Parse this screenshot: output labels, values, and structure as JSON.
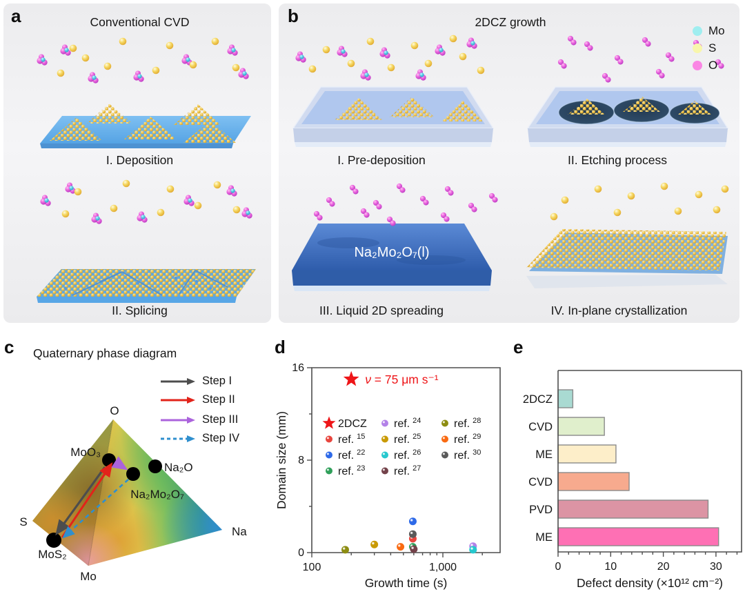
{
  "panel_a": {
    "letter": "a",
    "title": "Conventional CVD",
    "caption_1": "I. Deposition",
    "caption_2": "II. Splicing"
  },
  "panel_b": {
    "letter": "b",
    "title": "2DCZ growth",
    "caption_1": "I. Pre-deposition",
    "caption_2": "II. Etching process",
    "caption_3": "III. Liquid 2D spreading",
    "caption_4": "IV. In-plane crystallization",
    "liquid_label": "Na₂Mo₂O₇(l)",
    "atom_legend": [
      {
        "name": "Mo",
        "color": "#9feef0"
      },
      {
        "name": "S",
        "color": "#f8f6ac"
      },
      {
        "name": "O",
        "color": "#fa86e4"
      }
    ]
  },
  "panel_c": {
    "letter": "c",
    "title": "Quaternary phase diagram",
    "step_legend": [
      {
        "label": "Step I",
        "color": "#4d4d4d",
        "dashed": false
      },
      {
        "label": "Step II",
        "color": "#e2231a",
        "dashed": false
      },
      {
        "label": "Step III",
        "color": "#ab63dc",
        "dashed": false
      },
      {
        "label": "Step IV",
        "color": "#2f8fce",
        "dashed": true
      }
    ],
    "vertex_labels": {
      "top": "O",
      "left": "S",
      "right": "Na",
      "bottom": "Mo"
    },
    "point_labels": {
      "moo3": "MoO₃",
      "na2o": "Na₂O",
      "na2mo2o7": "Na₂Mo₂O₇",
      "mos2": "MoS₂"
    }
  },
  "panel_d": {
    "letter": "d"
  },
  "panel_e": {
    "letter": "e"
  },
  "chart_data": [
    {
      "id": "domain-size-scatter",
      "type": "scatter",
      "xlabel": "Growth time (s)",
      "ylabel": "Domain size (mm)",
      "x_scale": "log",
      "xlim": [
        100,
        2700
      ],
      "ylim": [
        0,
        16
      ],
      "x_major_ticks": [
        100,
        1000
      ],
      "x_tick_labels": [
        "100",
        "1,000"
      ],
      "x_minor_ticks": [
        200,
        300,
        400,
        500,
        600,
        700,
        800,
        900,
        2000
      ],
      "y_major_ticks": [
        0,
        8,
        16
      ],
      "y_minor_ticks": [
        4,
        12
      ],
      "annotation": {
        "text": "ν = 75 μm s⁻¹",
        "color": "#ee1518",
        "x": 200,
        "y": 15
      },
      "series": [
        {
          "name": "2DCZ",
          "sup": "",
          "marker": "star",
          "color": "#ee1518",
          "points": [
            [
              200,
              15
            ]
          ]
        },
        {
          "name": "ref.",
          "sup": "15",
          "marker": "circle",
          "color": "#e8463e",
          "points": [
            [
              590,
              1.2
            ]
          ]
        },
        {
          "name": "ref.",
          "sup": "22",
          "marker": "circle",
          "color": "#2e6ae8",
          "points": [
            [
              590,
              2.7
            ]
          ]
        },
        {
          "name": "ref.",
          "sup": "23",
          "marker": "circle",
          "color": "#2f9f5a",
          "points": [
            [
              590,
              0.5
            ]
          ]
        },
        {
          "name": "ref.",
          "sup": "24",
          "marker": "circle",
          "color": "#b382e8",
          "points": [
            [
              1700,
              0.55
            ]
          ]
        },
        {
          "name": "ref.",
          "sup": "25",
          "marker": "circle",
          "color": "#c99a04",
          "points": [
            [
              300,
              0.7
            ]
          ]
        },
        {
          "name": "ref.",
          "sup": "26",
          "marker": "circle",
          "color": "#27c8ce",
          "points": [
            [
              1700,
              0.25
            ]
          ]
        },
        {
          "name": "ref.",
          "sup": "27",
          "marker": "circle",
          "color": "#73424a",
          "points": [
            [
              600,
              0.3
            ]
          ]
        },
        {
          "name": "ref.",
          "sup": "28",
          "marker": "circle",
          "color": "#8d8d12",
          "points": [
            [
              180,
              0.25
            ]
          ]
        },
        {
          "name": "ref.",
          "sup": "29",
          "marker": "circle",
          "color": "#f96a12",
          "points": [
            [
              475,
              0.5
            ]
          ]
        },
        {
          "name": "ref.",
          "sup": "30",
          "marker": "circle",
          "color": "#5a5a5a",
          "points": [
            [
              590,
              1.6
            ]
          ]
        }
      ]
    },
    {
      "id": "defect-density-bars",
      "type": "bar",
      "orientation": "horizontal",
      "categories": [
        "2DCZ",
        "CVD",
        "ME",
        "CVD",
        "PVD",
        "ME"
      ],
      "values": [
        2.8,
        8.8,
        11,
        13.5,
        28.5,
        30.5
      ],
      "bar_colors": [
        "#a9dad2",
        "#e0efcc",
        "#fdeec9",
        "#f7aa8e",
        "#dc94a4",
        "#fe70b4"
      ],
      "xlabel": "Defect density (×10¹² cm⁻²)",
      "xlim": [
        0,
        34
      ],
      "x_major_ticks": [
        0,
        10,
        20,
        30
      ],
      "x_minor_step": 2
    }
  ]
}
